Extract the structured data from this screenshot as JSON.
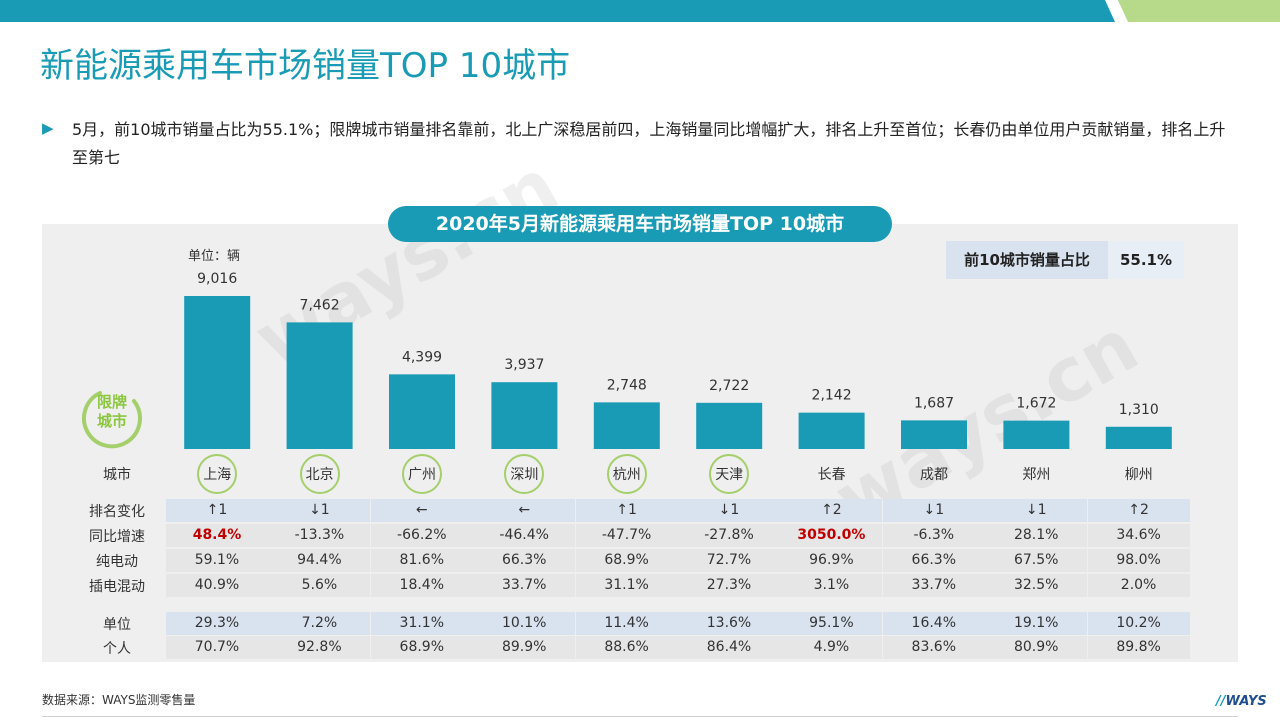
{
  "page_title": "新能源乘用车市场销量TOP 10城市",
  "bullet_text": "5月，前10城市销量占比为55.1%；限牌城市销量排名靠前，北上广深稳居前四，上海销量同比增幅扩大，排名上升至首位；长春仍由单位用户贡献销量，排名上升至第七",
  "chart_title": "2020年5月新能源乘用车市场销量TOP 10城市",
  "share_label": "前10城市销量占比",
  "share_value": "55.1%",
  "unit_note": "单位：辆",
  "restricted_label": "限牌城市",
  "row_labels": {
    "city": "城市",
    "rank_change": "排名变化",
    "yoy_growth": "同比增速",
    "bev": "纯电动",
    "phev": "插电混动",
    "institutional": "单位",
    "private": "个人"
  },
  "chart_data": {
    "type": "bar",
    "title": "2020年5月新能源乘用车市场销量TOP 10城市",
    "ylabel": "单位：辆",
    "categories": [
      "上海",
      "北京",
      "广州",
      "深圳",
      "杭州",
      "天津",
      "长春",
      "成都",
      "郑州",
      "柳州"
    ],
    "values": [
      9016,
      7462,
      4399,
      3937,
      2748,
      2722,
      2142,
      1687,
      1672,
      1310
    ],
    "value_labels": [
      "9,016",
      "7,462",
      "4,399",
      "3,937",
      "2,748",
      "2,722",
      "2,142",
      "1,687",
      "1,672",
      "1,310"
    ],
    "restricted_cities": [
      "上海",
      "北京",
      "广州",
      "深圳",
      "杭州",
      "天津"
    ],
    "bar_color": "#1a9bb5",
    "ylim": [
      0,
      9016
    ],
    "grid": false
  },
  "table": {
    "rank_change": [
      "↑1",
      "↓1",
      "←",
      "←",
      "↑1",
      "↓1",
      "↑2",
      "↓1",
      "↓1",
      "↑2"
    ],
    "yoy_growth": [
      "48.4%",
      "-13.3%",
      "-66.2%",
      "-46.4%",
      "-47.7%",
      "-27.8%",
      "3050.0%",
      "-6.3%",
      "28.1%",
      "34.6%"
    ],
    "yoy_highlight": [
      true,
      false,
      false,
      false,
      false,
      false,
      true,
      false,
      false,
      false
    ],
    "bev": [
      "59.1%",
      "94.4%",
      "81.6%",
      "66.3%",
      "68.9%",
      "72.7%",
      "96.9%",
      "66.3%",
      "67.5%",
      "98.0%"
    ],
    "phev": [
      "40.9%",
      "5.6%",
      "18.4%",
      "33.7%",
      "31.1%",
      "27.3%",
      "3.1%",
      "33.7%",
      "32.5%",
      "2.0%"
    ],
    "institutional": [
      "29.3%",
      "7.2%",
      "31.1%",
      "10.1%",
      "11.4%",
      "13.6%",
      "95.1%",
      "16.4%",
      "19.1%",
      "10.2%"
    ],
    "private": [
      "70.7%",
      "92.8%",
      "68.9%",
      "89.9%",
      "88.6%",
      "86.4%",
      "4.9%",
      "83.6%",
      "80.9%",
      "89.8%"
    ]
  },
  "source_text": "数据来源：WAYS监测零售量",
  "logo_text": "WAYS",
  "watermark_text": "ways.cn",
  "colors": {
    "accent": "#1a9bb5",
    "green": "#8cc63f",
    "highlight_red": "#c00000"
  }
}
